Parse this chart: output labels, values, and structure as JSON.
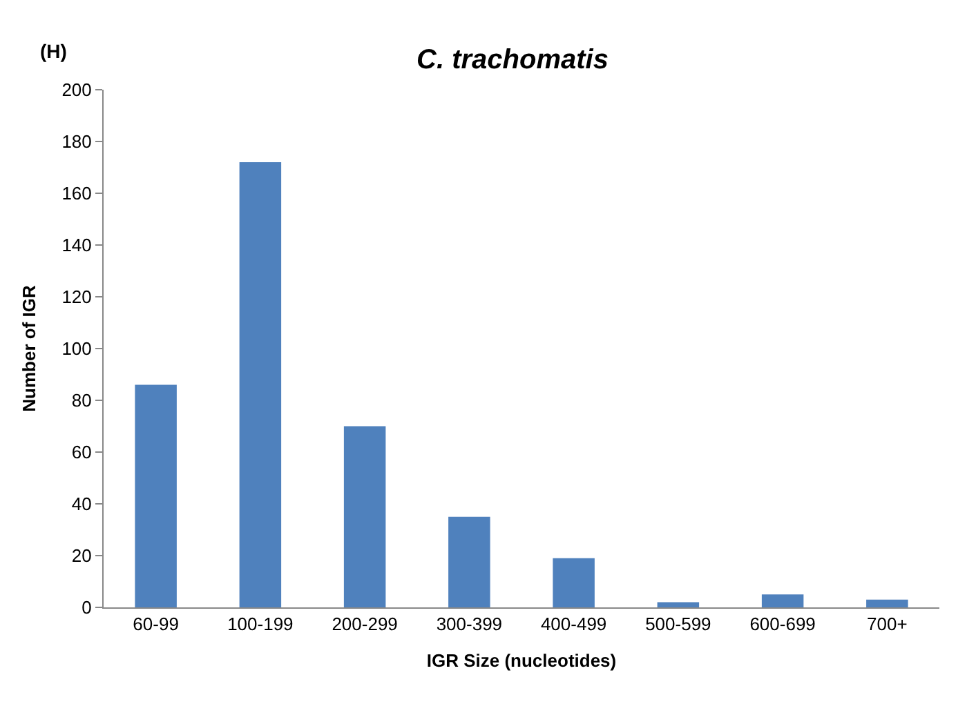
{
  "chart_data": {
    "type": "bar",
    "title": "C. trachomatis",
    "xlabel": "IGR Size (nucleotides)",
    "ylabel": "Number of IGR",
    "categories": [
      "60-99",
      "100-199",
      "200-299",
      "300-399",
      "400-499",
      "500-599",
      "600-699",
      "700+"
    ],
    "values": [
      86,
      172,
      70,
      35,
      19,
      2,
      5,
      3
    ],
    "color": "#4f81bd",
    "ylim": [
      0,
      200
    ],
    "yticks": [
      0,
      20,
      40,
      60,
      80,
      100,
      120,
      140,
      160,
      180,
      200
    ],
    "annotations": [
      "(H)"
    ]
  }
}
